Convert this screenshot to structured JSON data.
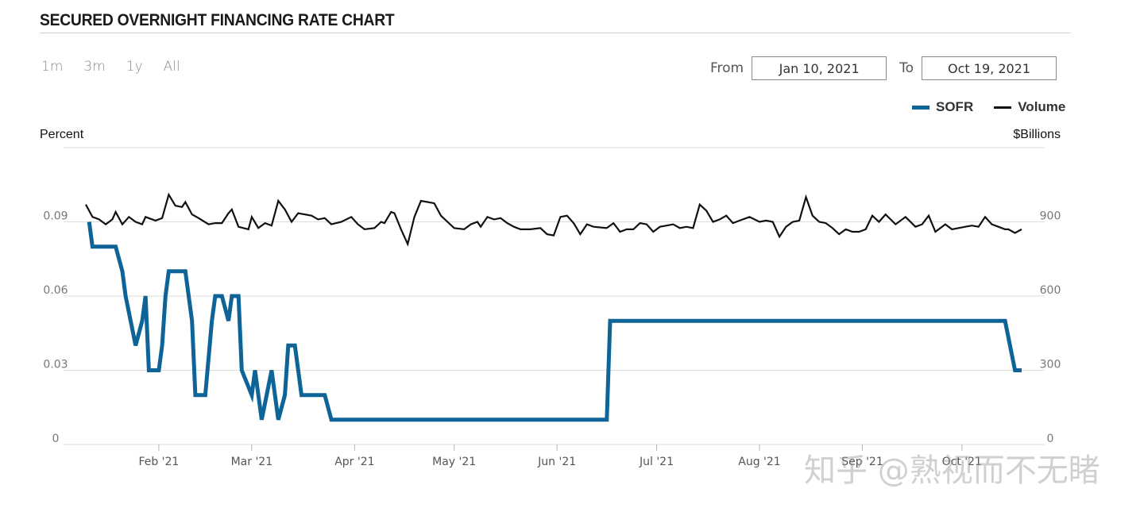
{
  "header": {
    "title": "SECURED OVERNIGHT FINANCING RATE CHART"
  },
  "range_buttons": [
    "1m",
    "3m",
    "1y",
    "All"
  ],
  "date_range": {
    "from_label": "From",
    "from_value": "Jan 10, 2021",
    "to_label": "To",
    "to_value": "Oct 19, 2021"
  },
  "watermark": "知乎 @熟视而不无睹",
  "colors": {
    "sofr": "#0e6496",
    "volume": "#111111",
    "grid": "#dedede"
  },
  "chart_data": {
    "type": "line",
    "title": "SECURED OVERNIGHT FINANCING RATE CHART",
    "left_axis_label": "Percent",
    "right_axis_label": "$Billions",
    "x_tick_labels": [
      "Feb '21",
      "Mar '21",
      "Apr '21",
      "May '21",
      "Jun '21",
      "Jul '21",
      "Aug '21",
      "Sep '21",
      "Oct '21"
    ],
    "left_ticks": [
      "0",
      "0.03",
      "0.06",
      "0.09"
    ],
    "right_ticks": [
      "0",
      "300",
      "600",
      "900"
    ],
    "y_left_range": [
      0,
      0.12
    ],
    "y_right_range": [
      0,
      1200
    ],
    "x_range": [
      "2021-01-10",
      "2021-10-19"
    ],
    "legend": {
      "position": "top-right",
      "entries": [
        "SOFR",
        "Volume"
      ]
    },
    "grid": true,
    "series": [
      {
        "name": "SOFR",
        "axis": "left",
        "color": "#0e6496",
        "points": [
          [
            "2021-01-11",
            0.09
          ],
          [
            "2021-01-12",
            0.08
          ],
          [
            "2021-01-19",
            0.08
          ],
          [
            "2021-01-21",
            0.07
          ],
          [
            "2021-01-22",
            0.06
          ],
          [
            "2021-01-25",
            0.04
          ],
          [
            "2021-01-27",
            0.05
          ],
          [
            "2021-01-28",
            0.06
          ],
          [
            "2021-01-29",
            0.03
          ],
          [
            "2021-02-01",
            0.03
          ],
          [
            "2021-02-02",
            0.04
          ],
          [
            "2021-02-03",
            0.06
          ],
          [
            "2021-02-04",
            0.07
          ],
          [
            "2021-02-09",
            0.07
          ],
          [
            "2021-02-11",
            0.05
          ],
          [
            "2021-02-12",
            0.02
          ],
          [
            "2021-02-15",
            0.02
          ],
          [
            "2021-02-17",
            0.05
          ],
          [
            "2021-02-18",
            0.06
          ],
          [
            "2021-02-20",
            0.06
          ],
          [
            "2021-02-22",
            0.05
          ],
          [
            "2021-02-23",
            0.06
          ],
          [
            "2021-02-25",
            0.06
          ],
          [
            "2021-02-26",
            0.03
          ],
          [
            "2021-03-01",
            0.02
          ],
          [
            "2021-03-02",
            0.03
          ],
          [
            "2021-03-04",
            0.01
          ],
          [
            "2021-03-07",
            0.03
          ],
          [
            "2021-03-09",
            0.01
          ],
          [
            "2021-03-11",
            0.02
          ],
          [
            "2021-03-12",
            0.04
          ],
          [
            "2021-03-14",
            0.04
          ],
          [
            "2021-03-16",
            0.02
          ],
          [
            "2021-03-23",
            0.02
          ],
          [
            "2021-03-25",
            0.01
          ],
          [
            "2021-06-16",
            0.01
          ],
          [
            "2021-06-17",
            0.05
          ],
          [
            "2021-10-14",
            0.05
          ],
          [
            "2021-10-17",
            0.03
          ],
          [
            "2021-10-19",
            0.03
          ]
        ]
      },
      {
        "name": "Volume",
        "axis": "right",
        "color": "#111111",
        "points": [
          [
            "2021-01-10",
            970
          ],
          [
            "2021-01-12",
            920
          ],
          [
            "2021-01-14",
            910
          ],
          [
            "2021-01-16",
            890
          ],
          [
            "2021-01-18",
            910
          ],
          [
            "2021-01-19",
            940
          ],
          [
            "2021-01-21",
            890
          ],
          [
            "2021-01-23",
            920
          ],
          [
            "2021-01-25",
            900
          ],
          [
            "2021-01-27",
            890
          ],
          [
            "2021-01-28",
            920
          ],
          [
            "2021-01-31",
            905
          ],
          [
            "2021-02-02",
            915
          ],
          [
            "2021-02-04",
            1010
          ],
          [
            "2021-02-06",
            965
          ],
          [
            "2021-02-08",
            960
          ],
          [
            "2021-02-09",
            980
          ],
          [
            "2021-02-11",
            930
          ],
          [
            "2021-02-13",
            915
          ],
          [
            "2021-02-16",
            890
          ],
          [
            "2021-02-18",
            895
          ],
          [
            "2021-02-20",
            895
          ],
          [
            "2021-02-22",
            935
          ],
          [
            "2021-02-23",
            950
          ],
          [
            "2021-02-25",
            880
          ],
          [
            "2021-02-28",
            870
          ],
          [
            "2021-03-01",
            920
          ],
          [
            "2021-03-03",
            875
          ],
          [
            "2021-03-05",
            895
          ],
          [
            "2021-03-07",
            885
          ],
          [
            "2021-03-09",
            985
          ],
          [
            "2021-03-11",
            950
          ],
          [
            "2021-03-13",
            900
          ],
          [
            "2021-03-15",
            935
          ],
          [
            "2021-03-19",
            925
          ],
          [
            "2021-03-21",
            910
          ],
          [
            "2021-03-23",
            915
          ],
          [
            "2021-03-25",
            890
          ],
          [
            "2021-03-28",
            900
          ],
          [
            "2021-03-31",
            920
          ],
          [
            "2021-04-02",
            890
          ],
          [
            "2021-04-04",
            870
          ],
          [
            "2021-04-07",
            875
          ],
          [
            "2021-04-09",
            900
          ],
          [
            "2021-04-10",
            895
          ],
          [
            "2021-04-12",
            940
          ],
          [
            "2021-04-13",
            935
          ],
          [
            "2021-04-15",
            870
          ],
          [
            "2021-04-17",
            810
          ],
          [
            "2021-04-19",
            920
          ],
          [
            "2021-04-21",
            985
          ],
          [
            "2021-04-25",
            975
          ],
          [
            "2021-04-27",
            925
          ],
          [
            "2021-04-29",
            900
          ],
          [
            "2021-05-01",
            875
          ],
          [
            "2021-05-04",
            870
          ],
          [
            "2021-05-06",
            890
          ],
          [
            "2021-05-08",
            900
          ],
          [
            "2021-05-09",
            880
          ],
          [
            "2021-05-11",
            920
          ],
          [
            "2021-05-13",
            910
          ],
          [
            "2021-05-15",
            915
          ],
          [
            "2021-05-17",
            895
          ],
          [
            "2021-05-19",
            880
          ],
          [
            "2021-05-21",
            870
          ],
          [
            "2021-05-24",
            870
          ],
          [
            "2021-05-27",
            875
          ],
          [
            "2021-05-29",
            850
          ],
          [
            "2021-05-31",
            845
          ],
          [
            "2021-06-02",
            920
          ],
          [
            "2021-06-04",
            925
          ],
          [
            "2021-06-06",
            895
          ],
          [
            "2021-06-08",
            850
          ],
          [
            "2021-06-10",
            890
          ],
          [
            "2021-06-12",
            880
          ],
          [
            "2021-06-16",
            875
          ],
          [
            "2021-06-18",
            895
          ],
          [
            "2021-06-20",
            860
          ],
          [
            "2021-06-22",
            870
          ],
          [
            "2021-06-24",
            870
          ],
          [
            "2021-06-26",
            895
          ],
          [
            "2021-06-28",
            890
          ],
          [
            "2021-06-30",
            860
          ],
          [
            "2021-07-02",
            880
          ],
          [
            "2021-07-04",
            885
          ],
          [
            "2021-07-06",
            890
          ],
          [
            "2021-07-08",
            875
          ],
          [
            "2021-07-10",
            880
          ],
          [
            "2021-07-12",
            875
          ],
          [
            "2021-07-14",
            970
          ],
          [
            "2021-07-16",
            945
          ],
          [
            "2021-07-18",
            900
          ],
          [
            "2021-07-20",
            910
          ],
          [
            "2021-07-22",
            925
          ],
          [
            "2021-07-24",
            895
          ],
          [
            "2021-07-26",
            905
          ],
          [
            "2021-07-29",
            920
          ],
          [
            "2021-08-01",
            900
          ],
          [
            "2021-08-03",
            905
          ],
          [
            "2021-08-05",
            900
          ],
          [
            "2021-08-07",
            840
          ],
          [
            "2021-08-09",
            880
          ],
          [
            "2021-08-11",
            900
          ],
          [
            "2021-08-13",
            905
          ],
          [
            "2021-08-15",
            1000
          ],
          [
            "2021-08-17",
            925
          ],
          [
            "2021-08-19",
            900
          ],
          [
            "2021-08-21",
            895
          ],
          [
            "2021-08-23",
            875
          ],
          [
            "2021-08-25",
            850
          ],
          [
            "2021-08-27",
            870
          ],
          [
            "2021-08-29",
            860
          ],
          [
            "2021-08-31",
            860
          ],
          [
            "2021-09-02",
            870
          ],
          [
            "2021-09-04",
            925
          ],
          [
            "2021-09-06",
            900
          ],
          [
            "2021-09-08",
            930
          ],
          [
            "2021-09-11",
            890
          ],
          [
            "2021-09-14",
            920
          ],
          [
            "2021-09-17",
            880
          ],
          [
            "2021-09-19",
            890
          ],
          [
            "2021-09-21",
            925
          ],
          [
            "2021-09-23",
            860
          ],
          [
            "2021-09-26",
            890
          ],
          [
            "2021-09-28",
            870
          ],
          [
            "2021-09-30",
            875
          ],
          [
            "2021-10-02",
            880
          ],
          [
            "2021-10-04",
            885
          ],
          [
            "2021-10-06",
            880
          ],
          [
            "2021-10-08",
            920
          ],
          [
            "2021-10-10",
            890
          ],
          [
            "2021-10-12",
            880
          ],
          [
            "2021-10-14",
            870
          ],
          [
            "2021-10-15",
            870
          ],
          [
            "2021-10-17",
            855
          ],
          [
            "2021-10-19",
            870
          ]
        ]
      }
    ]
  }
}
